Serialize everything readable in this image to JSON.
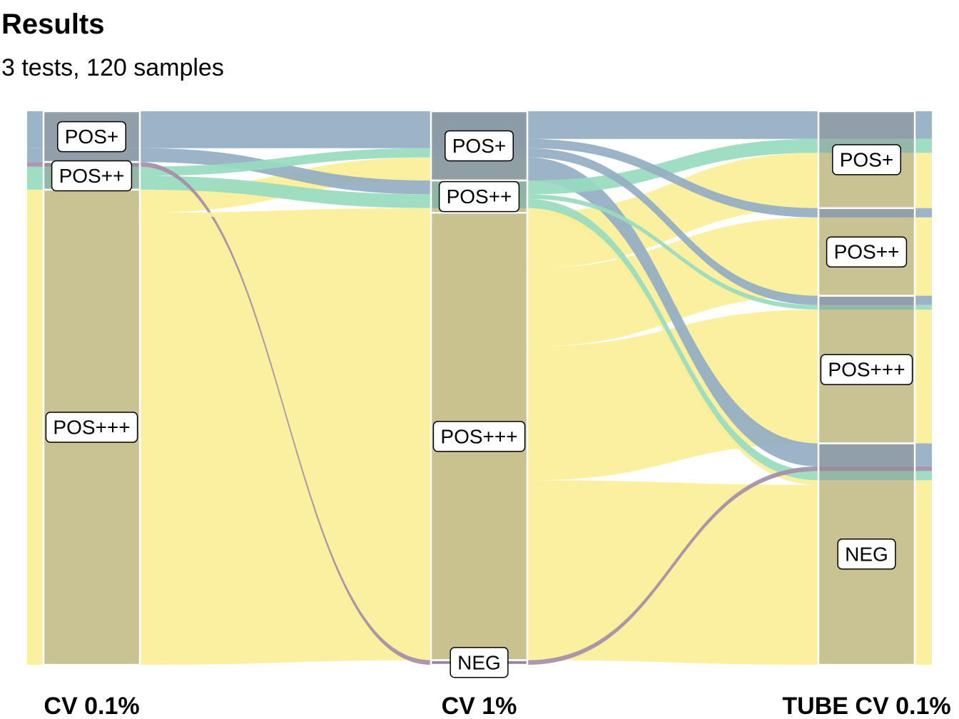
{
  "title": "Results",
  "subtitle": "3 tests, 120 samples",
  "chart_data": {
    "type": "alluvial",
    "total": 120,
    "axes": [
      "CV 0.1%",
      "CV 1%",
      "TUBE CV 0.1%"
    ],
    "nodes": [
      [
        {
          "label": "POS+",
          "count": 11
        },
        {
          "label": "POS++",
          "count": 6
        },
        {
          "label": "POS+++",
          "count": 103
        }
      ],
      [
        {
          "label": "POS+",
          "count": 15
        },
        {
          "label": "POS++",
          "count": 7
        },
        {
          "label": "POS+++",
          "count": 97
        },
        {
          "label": "NEG",
          "count": 1
        }
      ],
      [
        {
          "label": "POS+",
          "count": 21
        },
        {
          "label": "POS++",
          "count": 19
        },
        {
          "label": "POS+++",
          "count": 32
        },
        {
          "label": "NEG",
          "count": 48
        }
      ]
    ],
    "series": [
      {
        "name": "POS+",
        "color": "#93aec2"
      },
      {
        "name": "NEG",
        "color": "#a48ea8"
      },
      {
        "name": "POS++",
        "color": "#98dbbf"
      },
      {
        "name": "POS+++",
        "color": "#fbee98"
      }
    ],
    "flows_1_2": [
      {
        "from": "POS+",
        "to": "POS+",
        "count": 8,
        "series": "POS+"
      },
      {
        "from": "POS+",
        "to": "POS++",
        "count": 3,
        "series": "POS+"
      },
      {
        "from": "POS++",
        "to": "NEG",
        "count": 1,
        "series": "NEG"
      },
      {
        "from": "POS++",
        "to": "POS+",
        "count": 2,
        "series": "POS++"
      },
      {
        "from": "POS++",
        "to": "POS++",
        "count": 3,
        "series": "POS++"
      },
      {
        "from": "POS+++",
        "to": "POS+",
        "count": 5,
        "series": "POS+++"
      },
      {
        "from": "POS+++",
        "to": "POS++",
        "count": 1,
        "series": "POS+++"
      },
      {
        "from": "POS+++",
        "to": "POS+++",
        "count": 97,
        "series": "POS+++"
      }
    ],
    "flows_2_3": [
      {
        "from": "POS+",
        "to": "POS+",
        "count": 6,
        "series": "POS+"
      },
      {
        "from": "POS+",
        "to": "POS++",
        "count": 2,
        "series": "POS+"
      },
      {
        "from": "POS+",
        "to": "POS+++",
        "count": 2,
        "series": "POS+"
      },
      {
        "from": "POS+",
        "to": "NEG",
        "count": 5,
        "series": "POS+"
      },
      {
        "from": "POS++",
        "to": "POS+",
        "count": 3,
        "series": "POS++"
      },
      {
        "from": "POS++",
        "to": "POS+++",
        "count": 1,
        "series": "POS++"
      },
      {
        "from": "POS++",
        "to": "NEG",
        "count": 2,
        "series": "POS++"
      },
      {
        "from": "POS++",
        "to": "NEG",
        "count": 1,
        "series": "POS+++"
      },
      {
        "from": "POS+++",
        "to": "POS+",
        "count": 12,
        "series": "POS+++"
      },
      {
        "from": "POS+++",
        "to": "POS++",
        "count": 17,
        "series": "POS+++"
      },
      {
        "from": "POS+++",
        "to": "POS+++",
        "count": 29,
        "series": "POS+++"
      },
      {
        "from": "POS+++",
        "to": "NEG",
        "count": 39,
        "series": "POS+++"
      },
      {
        "from": "NEG",
        "to": "NEG",
        "count": 1,
        "series": "NEG"
      }
    ]
  }
}
